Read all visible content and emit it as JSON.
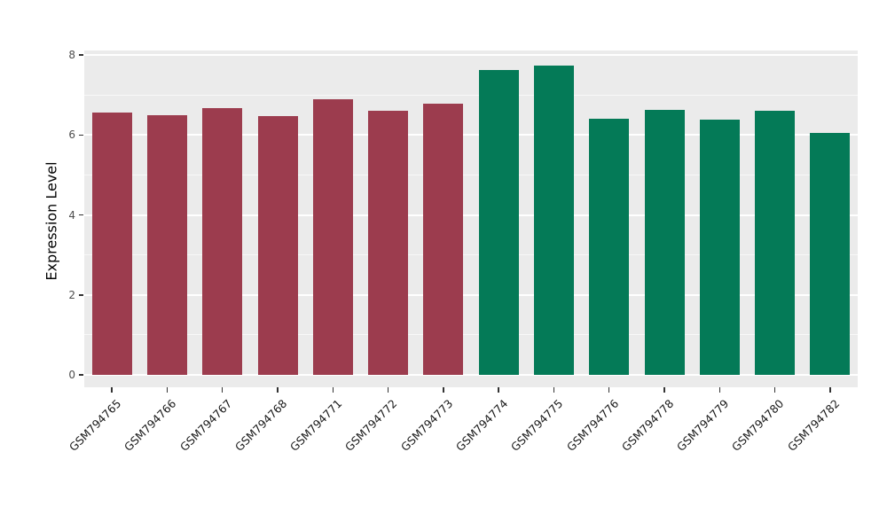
{
  "chart_data": {
    "type": "bar",
    "title": "",
    "xlabel": "",
    "ylabel": "Expression Level",
    "categories": [
      "GSM794765",
      "GSM794766",
      "GSM794767",
      "GSM794768",
      "GSM794771",
      "GSM794772",
      "GSM794773",
      "GSM794774",
      "GSM794775",
      "GSM794776",
      "GSM794778",
      "GSM794779",
      "GSM794780",
      "GSM794782"
    ],
    "values": [
      6.55,
      6.5,
      6.66,
      6.48,
      6.9,
      6.6,
      6.79,
      7.62,
      7.73,
      6.4,
      6.63,
      6.38,
      6.6,
      6.05
    ],
    "bar_colors": [
      "#9c3c4e",
      "#9c3c4e",
      "#9c3c4e",
      "#9c3c4e",
      "#9c3c4e",
      "#9c3c4e",
      "#9c3c4e",
      "#047a57",
      "#047a57",
      "#047a57",
      "#047a57",
      "#047a57",
      "#047a57",
      "#047a57"
    ],
    "group_colors": {
      "left_group": "#9c3c4e",
      "right_group": "#047a57"
    },
    "ylim": [
      0,
      8
    ],
    "yticks": [
      0,
      2,
      4,
      6,
      8
    ],
    "minor_ticks": [
      1,
      3,
      5,
      7
    ],
    "grid": "on",
    "legend": "none",
    "panel_background": "#ebebeb",
    "grid_color": "#ffffff",
    "figure_background": "#ffffff"
  }
}
